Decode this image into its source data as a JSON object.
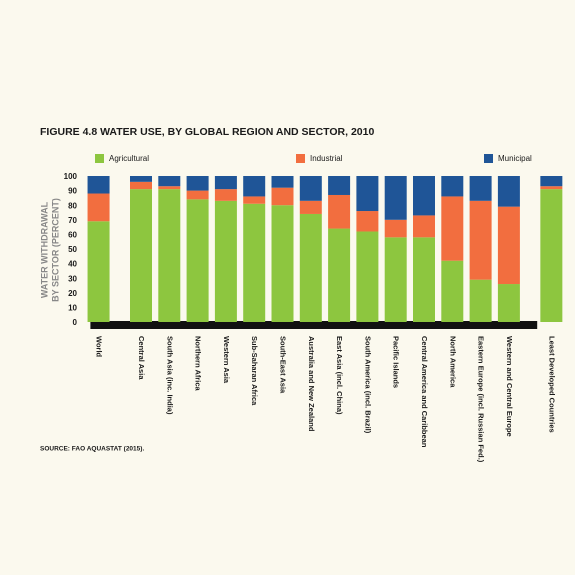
{
  "chart_data": {
    "type": "stacked_bar",
    "title": "FIGURE 4.8    WATER USE, BY GLOBAL REGION AND SECTOR, 2010",
    "ylabel": [
      "WATER WITHDRAWAL",
      "BY SECTOR (PERCENT)"
    ],
    "source": "SOURCE: FAO AQUASTAT (2015).",
    "categories": [
      "World",
      null,
      "Central Asia",
      "South Asia (inc. India)",
      "Northern Africa",
      "Western Asia",
      "Sub-Saharan Africa",
      "South-East Asia",
      "Australia and New Zealand",
      "East Asia (incl. China)",
      "South America (incl. Brazil)",
      "Pacific Islands",
      "Central America and Caribbean",
      "North America",
      "Eastern Europe (incl. Russian Fed.)",
      "Western and Central Europe",
      null,
      "Least Developed Countries"
    ],
    "series": [
      {
        "name": "Agricultural",
        "color": "#8dc63f",
        "values": [
          69,
          null,
          91,
          91,
          84,
          83,
          81,
          80,
          74,
          64,
          62,
          58,
          58,
          42,
          29,
          26,
          null,
          91
        ]
      },
      {
        "name": "Industrial",
        "color": "#f26e3f",
        "values": [
          19,
          null,
          5,
          2,
          6,
          8,
          5,
          12,
          9,
          23,
          14,
          12,
          15,
          44,
          54,
          53,
          null,
          2
        ]
      },
      {
        "name": "Municipal",
        "color": "#1f5597",
        "values": [
          12,
          null,
          4,
          7,
          10,
          9,
          14,
          8,
          17,
          13,
          24,
          30,
          27,
          14,
          17,
          21,
          null,
          7
        ]
      }
    ],
    "ylim": [
      0,
      100
    ],
    "yticks": [
      0,
      10,
      20,
      30,
      40,
      50,
      60,
      70,
      80,
      90,
      100
    ],
    "grid": false
  }
}
